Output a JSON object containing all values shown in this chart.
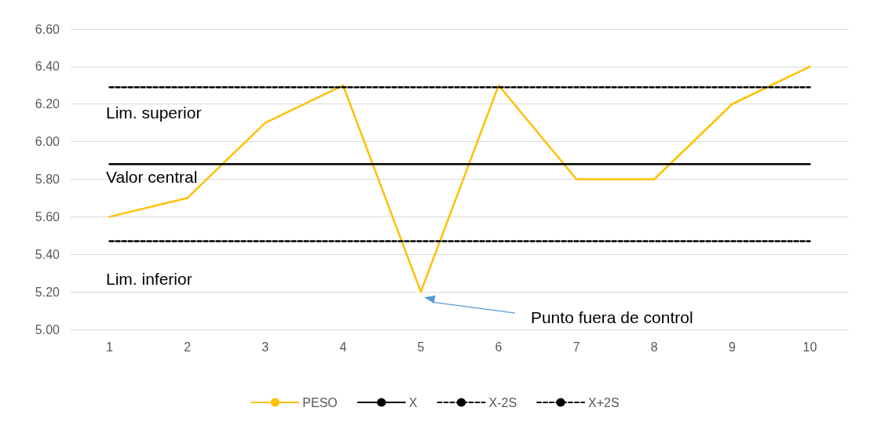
{
  "chart_data": {
    "type": "line",
    "categories": [
      "1",
      "2",
      "3",
      "4",
      "5",
      "6",
      "7",
      "8",
      "9",
      "10"
    ],
    "series": [
      {
        "name": "PESO",
        "color": "#ffc000",
        "line_style": "solid",
        "values": [
          5.6,
          5.7,
          6.1,
          6.3,
          5.2,
          6.3,
          5.8,
          5.8,
          6.2,
          6.4
        ]
      },
      {
        "name": "X",
        "color": "#000000",
        "line_style": "solid",
        "values": [
          5.88,
          5.88,
          5.88,
          5.88,
          5.88,
          5.88,
          5.88,
          5.88,
          5.88,
          5.88
        ]
      },
      {
        "name": "X-2S",
        "color": "#000000",
        "line_style": "dashed",
        "values": [
          5.47,
          5.47,
          5.47,
          5.47,
          5.47,
          5.47,
          5.47,
          5.47,
          5.47,
          5.47
        ]
      },
      {
        "name": "X+2S",
        "color": "#000000",
        "line_style": "dashed",
        "values": [
          6.29,
          6.29,
          6.29,
          6.29,
          6.29,
          6.29,
          6.29,
          6.29,
          6.29,
          6.29
        ]
      }
    ],
    "ylim": [
      5.0,
      6.6
    ],
    "yticks": [
      {
        "value": 5.0,
        "label": "5.00"
      },
      {
        "value": 5.2,
        "label": "5.20"
      },
      {
        "value": 5.4,
        "label": "5.40"
      },
      {
        "value": 5.6,
        "label": "5.60"
      },
      {
        "value": 5.8,
        "label": "5.80"
      },
      {
        "value": 6.0,
        "label": "6.00"
      },
      {
        "value": 6.2,
        "label": "6.20"
      },
      {
        "value": 6.4,
        "label": "6.40"
      },
      {
        "value": 6.6,
        "label": "6.60"
      }
    ],
    "annotations": [
      "Lim. superior",
      "Valor central",
      "Lim. inferior",
      "Punto fuera de control"
    ],
    "grid": "y",
    "legend": "bottom",
    "marker": "none"
  }
}
